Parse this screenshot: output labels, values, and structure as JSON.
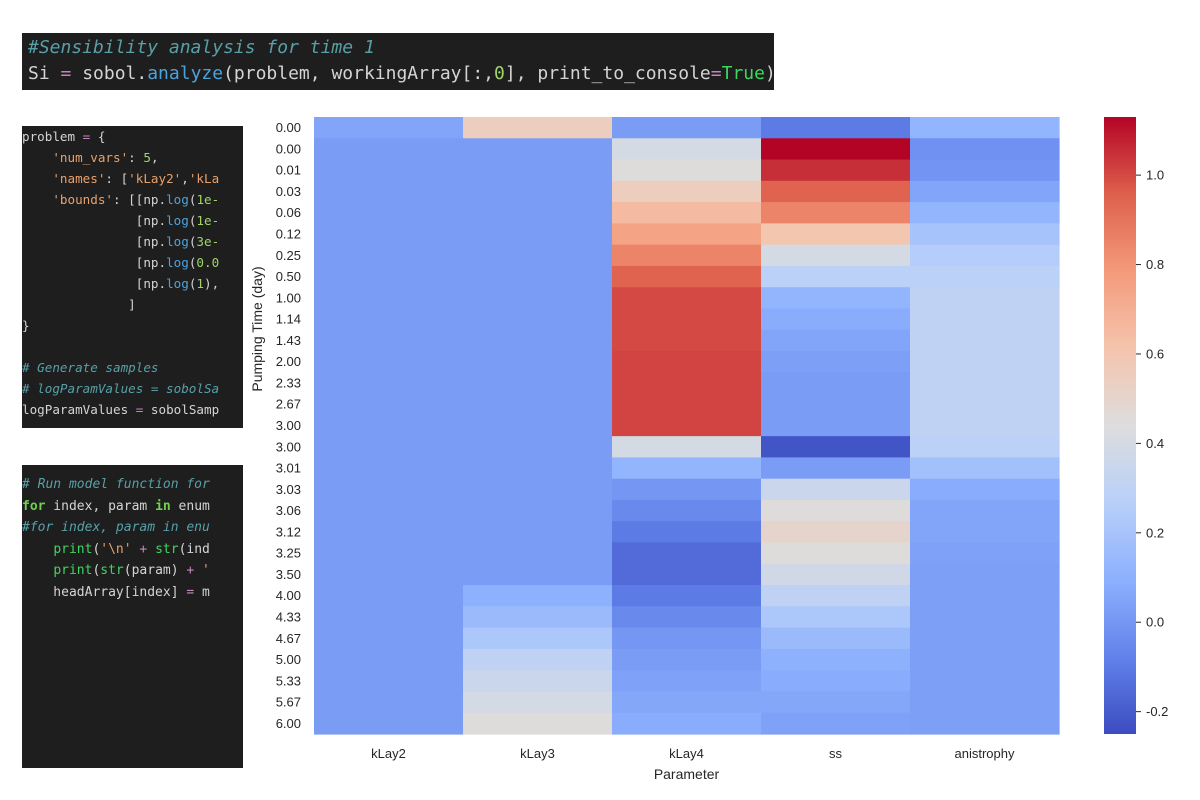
{
  "code_cells": {
    "top": [
      {
        "cls": "cm",
        "text": "#Sensibility analysis for time 1"
      },
      [
        {
          "t": "Si "
        },
        {
          "t": "=",
          "c": "op"
        },
        {
          "t": " sobol."
        },
        {
          "t": "analyze",
          "c": "fn"
        },
        {
          "t": "(problem, workingArray[:,"
        },
        {
          "t": "0",
          "c": "nm"
        },
        {
          "t": "], print_to_console"
        },
        {
          "t": "=",
          "c": "op"
        },
        {
          "t": "True",
          "c": "tr"
        },
        {
          "t": ")"
        }
      ]
    ],
    "mid": [
      [
        {
          "t": "problem "
        },
        {
          "t": "=",
          "c": "op"
        },
        {
          "t": " {"
        }
      ],
      [
        {
          "t": "    "
        },
        {
          "t": "'num_vars'",
          "c": "st"
        },
        {
          "t": ": "
        },
        {
          "t": "5",
          "c": "nm"
        },
        {
          "t": ","
        }
      ],
      [
        {
          "t": "    "
        },
        {
          "t": "'names'",
          "c": "st"
        },
        {
          "t": ": ["
        },
        {
          "t": "'kLay2'",
          "c": "st"
        },
        {
          "t": ","
        },
        {
          "t": "'kLa",
          "c": "st"
        }
      ],
      [
        {
          "t": "    "
        },
        {
          "t": "'bounds'",
          "c": "st"
        },
        {
          "t": ": [[np."
        },
        {
          "t": "log",
          "c": "fn"
        },
        {
          "t": "("
        },
        {
          "t": "1e-",
          "c": "nm"
        }
      ],
      [
        {
          "t": "               [np."
        },
        {
          "t": "log",
          "c": "fn"
        },
        {
          "t": "("
        },
        {
          "t": "1e-",
          "c": "nm"
        }
      ],
      [
        {
          "t": "               [np."
        },
        {
          "t": "log",
          "c": "fn"
        },
        {
          "t": "("
        },
        {
          "t": "3e-",
          "c": "nm"
        }
      ],
      [
        {
          "t": "               [np."
        },
        {
          "t": "log",
          "c": "fn"
        },
        {
          "t": "("
        },
        {
          "t": "0.0",
          "c": "nm"
        }
      ],
      [
        {
          "t": "               [np."
        },
        {
          "t": "log",
          "c": "fn"
        },
        {
          "t": "("
        },
        {
          "t": "1",
          "c": "nm"
        },
        {
          "t": "),"
        }
      ],
      [
        {
          "t": "              ]"
        }
      ],
      [
        {
          "t": "}"
        }
      ],
      [
        {
          "t": ""
        }
      ],
      {
        "cls": "cm",
        "text": "# Generate samples"
      },
      {
        "cls": "cm",
        "text": "# logParamValues = sobolSa"
      },
      [
        {
          "t": "logParamValues "
        },
        {
          "t": "=",
          "c": "op"
        },
        {
          "t": " sobolSamp"
        }
      ]
    ],
    "bot": [
      {
        "cls": "cm",
        "text": "# Run model function for"
      },
      [
        {
          "t": "for",
          "c": "kwg"
        },
        {
          "t": " index, param "
        },
        {
          "t": "in",
          "c": "kwg"
        },
        {
          "t": " enum"
        }
      ],
      {
        "cls": "cm",
        "text": "#for index, param in enu"
      },
      [
        {
          "t": "    "
        },
        {
          "t": "print",
          "c": "tr"
        },
        {
          "t": "("
        },
        {
          "t": "'\\n'",
          "c": "st"
        },
        {
          "t": " "
        },
        {
          "t": "+",
          "c": "op"
        },
        {
          "t": " "
        },
        {
          "t": "str",
          "c": "tr"
        },
        {
          "t": "(ind"
        }
      ],
      [
        {
          "t": "    "
        },
        {
          "t": "print",
          "c": "tr"
        },
        {
          "t": "("
        },
        {
          "t": "str",
          "c": "tr"
        },
        {
          "t": "(param) "
        },
        {
          "t": "+",
          "c": "op"
        },
        {
          "t": " "
        },
        {
          "t": "'",
          "c": "st"
        }
      ],
      [
        {
          "t": "    headArray[index] "
        },
        {
          "t": "=",
          "c": "op"
        },
        {
          "t": " m"
        }
      ]
    ]
  },
  "chart_data": {
    "type": "heatmap",
    "xlabel": "Parameter",
    "ylabel": "Pumping Time (day)",
    "columns": [
      "kLay2",
      "kLay3",
      "kLay4",
      "ss",
      "anistrophy"
    ],
    "rows": [
      "0.00",
      "0.00",
      "0.01",
      "0.03",
      "0.06",
      "0.12",
      "0.25",
      "0.50",
      "1.00",
      "1.14",
      "1.43",
      "2.00",
      "2.33",
      "2.67",
      "3.00",
      "3.00",
      "3.01",
      "3.03",
      "3.06",
      "3.12",
      "3.25",
      "3.50",
      "4.00",
      "4.33",
      "4.67",
      "5.00",
      "5.33",
      "5.67",
      "6.00"
    ],
    "values": [
      [
        0.05,
        0.55,
        0.02,
        -0.1,
        0.12
      ],
      [
        0.02,
        0.02,
        0.4,
        1.13,
        -0.02
      ],
      [
        0.02,
        0.02,
        0.45,
        1.05,
        -0.01
      ],
      [
        0.02,
        0.02,
        0.55,
        0.95,
        0.05
      ],
      [
        0.02,
        0.02,
        0.65,
        0.85,
        0.12
      ],
      [
        0.02,
        0.02,
        0.75,
        0.6,
        0.2
      ],
      [
        0.02,
        0.02,
        0.85,
        0.4,
        0.25
      ],
      [
        0.02,
        0.02,
        0.95,
        0.28,
        0.28
      ],
      [
        0.02,
        0.02,
        1.0,
        0.12,
        0.3
      ],
      [
        0.02,
        0.02,
        1.0,
        0.08,
        0.3
      ],
      [
        0.02,
        0.02,
        1.0,
        0.05,
        0.3
      ],
      [
        0.02,
        0.02,
        1.01,
        0.03,
        0.3
      ],
      [
        0.02,
        0.02,
        1.01,
        0.02,
        0.3
      ],
      [
        0.02,
        0.02,
        1.01,
        0.02,
        0.3
      ],
      [
        0.02,
        0.02,
        1.01,
        0.02,
        0.3
      ],
      [
        0.02,
        0.02,
        0.4,
        -0.22,
        0.28
      ],
      [
        0.02,
        0.02,
        0.12,
        0.02,
        0.18
      ],
      [
        0.02,
        0.02,
        0.0,
        0.35,
        0.08
      ],
      [
        0.02,
        0.02,
        -0.05,
        0.45,
        0.05
      ],
      [
        0.02,
        0.02,
        -0.1,
        0.5,
        0.05
      ],
      [
        0.02,
        0.02,
        -0.15,
        0.45,
        0.04
      ],
      [
        0.02,
        0.02,
        -0.15,
        0.38,
        0.03
      ],
      [
        0.02,
        0.1,
        -0.1,
        0.3,
        0.03
      ],
      [
        0.02,
        0.15,
        -0.05,
        0.22,
        0.03
      ],
      [
        0.02,
        0.22,
        0.0,
        0.15,
        0.03
      ],
      [
        0.02,
        0.3,
        0.02,
        0.1,
        0.03
      ],
      [
        0.02,
        0.35,
        0.04,
        0.08,
        0.03
      ],
      [
        0.02,
        0.4,
        0.06,
        0.06,
        0.03
      ],
      [
        0.02,
        0.45,
        0.08,
        0.04,
        0.03
      ]
    ],
    "vmin": -0.25,
    "vmax": 1.13,
    "colormap": "coolwarm",
    "colorbar_ticks": [
      "-0.2",
      "0.0",
      "0.2",
      "0.4",
      "0.6",
      "0.8",
      "1.0"
    ],
    "grid": false
  }
}
